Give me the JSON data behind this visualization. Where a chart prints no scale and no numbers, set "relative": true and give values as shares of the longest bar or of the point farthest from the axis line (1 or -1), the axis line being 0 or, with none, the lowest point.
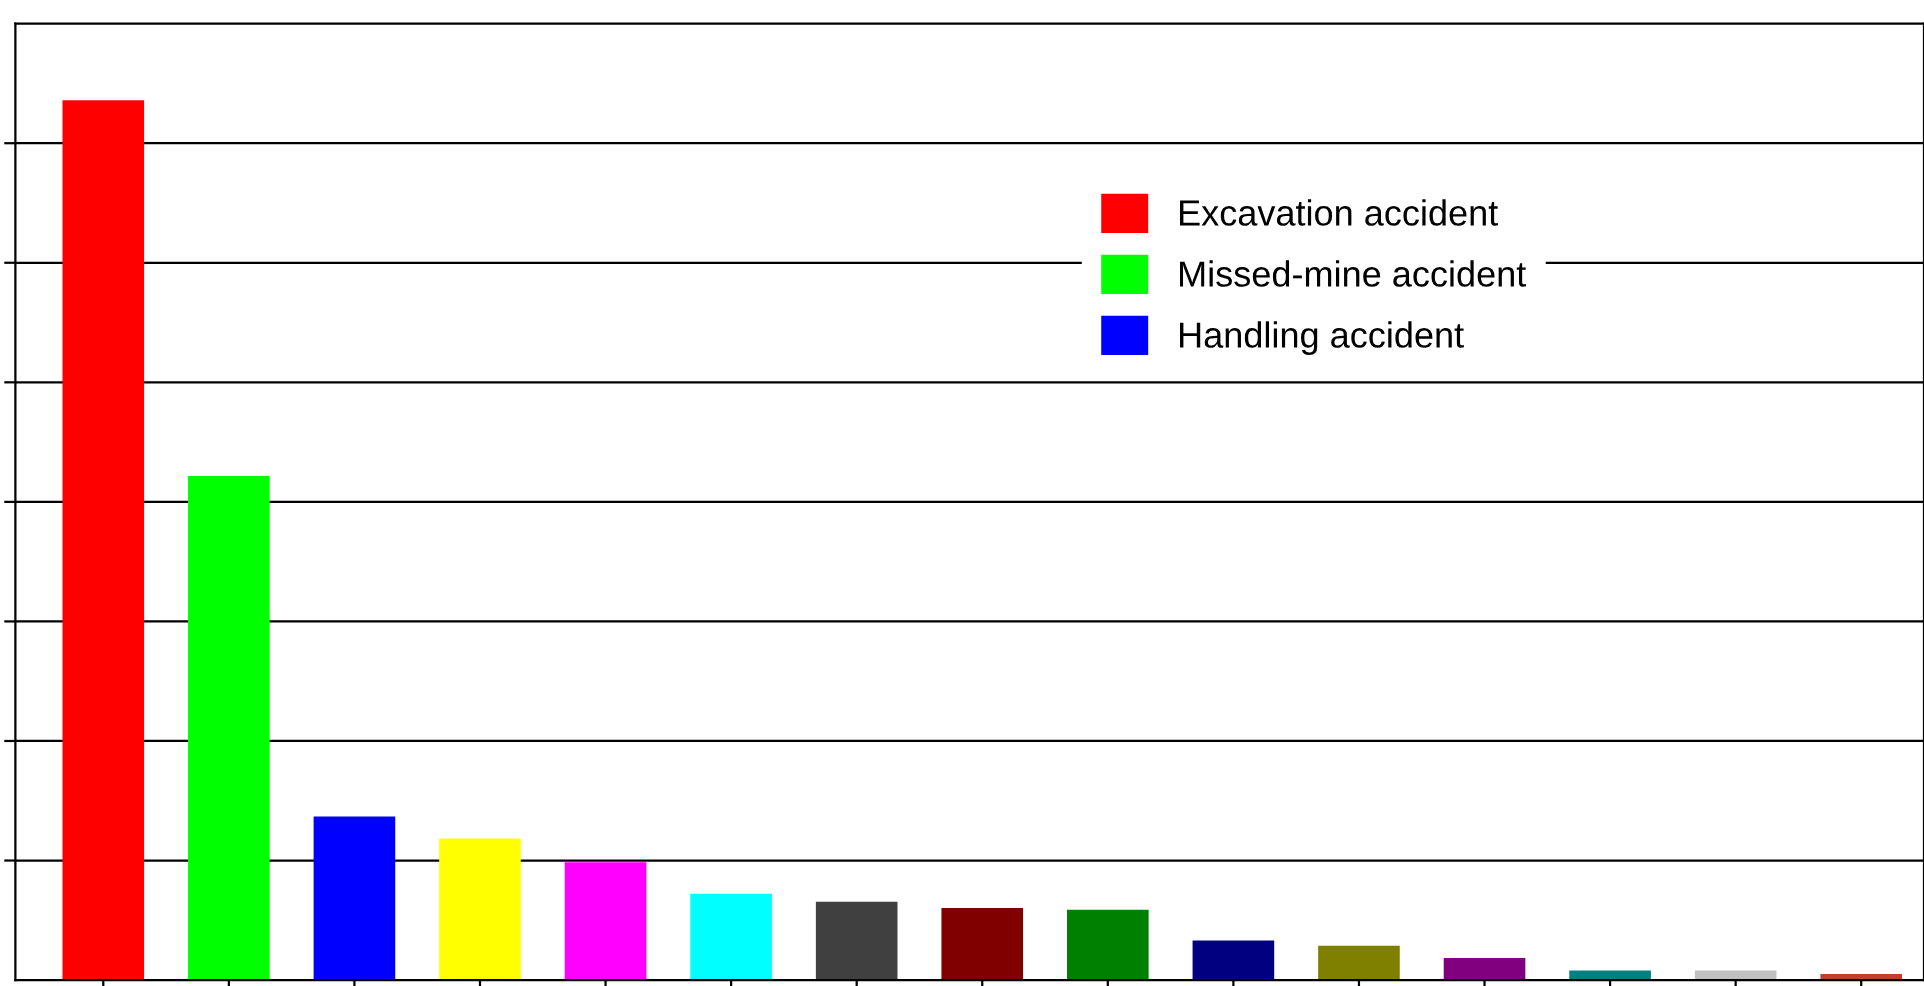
{
  "chart_data": {
    "type": "bar",
    "relative": true,
    "stacked": true,
    "grid": "y",
    "legend": "top right",
    "categories": [
      null,
      null,
      null,
      null,
      null,
      null,
      null,
      null,
      null,
      null,
      null,
      null,
      null,
      null,
      null
    ],
    "series": [
      {
        "name": "Excavation accident",
        "color": "#ff0000",
        "values": [
          1.0,
          null,
          null,
          null,
          null,
          null,
          null,
          null,
          null,
          null,
          null,
          null,
          null,
          null,
          null
        ]
      },
      {
        "name": "Missed-mine accident",
        "color": "#00ff00",
        "values": [
          null,
          0.573,
          null,
          null,
          null,
          null,
          null,
          null,
          null,
          null,
          null,
          null,
          null,
          null,
          null
        ]
      },
      {
        "name": "Handling accident",
        "color": "#0000ff",
        "values": [
          null,
          null,
          0.186,
          null,
          null,
          null,
          null,
          null,
          null,
          null,
          null,
          null,
          null,
          null,
          null
        ]
      },
      {
        "color": "#ffff00",
        "values": [
          null,
          null,
          null,
          0.161,
          null,
          null,
          null,
          null,
          null,
          null,
          null,
          null,
          null,
          null,
          null
        ]
      },
      {
        "color": "#ff00ff",
        "values": [
          null,
          null,
          null,
          null,
          0.134,
          null,
          null,
          null,
          null,
          null,
          null,
          null,
          null,
          null,
          null
        ]
      },
      {
        "color": "#00ffff",
        "values": [
          null,
          null,
          null,
          null,
          null,
          0.098,
          null,
          null,
          null,
          null,
          null,
          null,
          null,
          null,
          null
        ]
      },
      {
        "color": "#404040",
        "values": [
          null,
          null,
          null,
          null,
          null,
          null,
          0.089,
          null,
          null,
          null,
          null,
          null,
          null,
          null,
          null
        ]
      },
      {
        "color": "#800000",
        "values": [
          null,
          null,
          null,
          null,
          null,
          null,
          null,
          0.082,
          null,
          null,
          null,
          null,
          null,
          null,
          null
        ]
      },
      {
        "color": "#008000",
        "values": [
          null,
          null,
          null,
          null,
          null,
          null,
          null,
          null,
          0.08,
          null,
          null,
          null,
          null,
          null,
          null
        ]
      },
      {
        "color": "#000080",
        "values": [
          null,
          null,
          null,
          null,
          null,
          null,
          null,
          null,
          null,
          0.045,
          null,
          null,
          null,
          null,
          null
        ]
      },
      {
        "color": "#808000",
        "values": [
          null,
          null,
          null,
          null,
          null,
          null,
          null,
          null,
          null,
          null,
          0.039,
          null,
          null,
          null,
          null
        ]
      },
      {
        "color": "#800080",
        "values": [
          null,
          null,
          null,
          null,
          null,
          null,
          null,
          null,
          null,
          null,
          null,
          0.025,
          null,
          null,
          null
        ]
      },
      {
        "color": "#008080",
        "values": [
          null,
          null,
          null,
          null,
          null,
          null,
          null,
          null,
          null,
          null,
          null,
          null,
          0.011,
          null,
          null
        ]
      },
      {
        "color": "#c0c0c0",
        "values": [
          null,
          null,
          null,
          null,
          null,
          null,
          null,
          null,
          null,
          null,
          null,
          null,
          null,
          0.011,
          null
        ]
      },
      {
        "color": "#c04030",
        "values": [
          null,
          null,
          null,
          null,
          null,
          null,
          null,
          null,
          null,
          null,
          null,
          null,
          null,
          null,
          0.007
        ]
      }
    ]
  }
}
